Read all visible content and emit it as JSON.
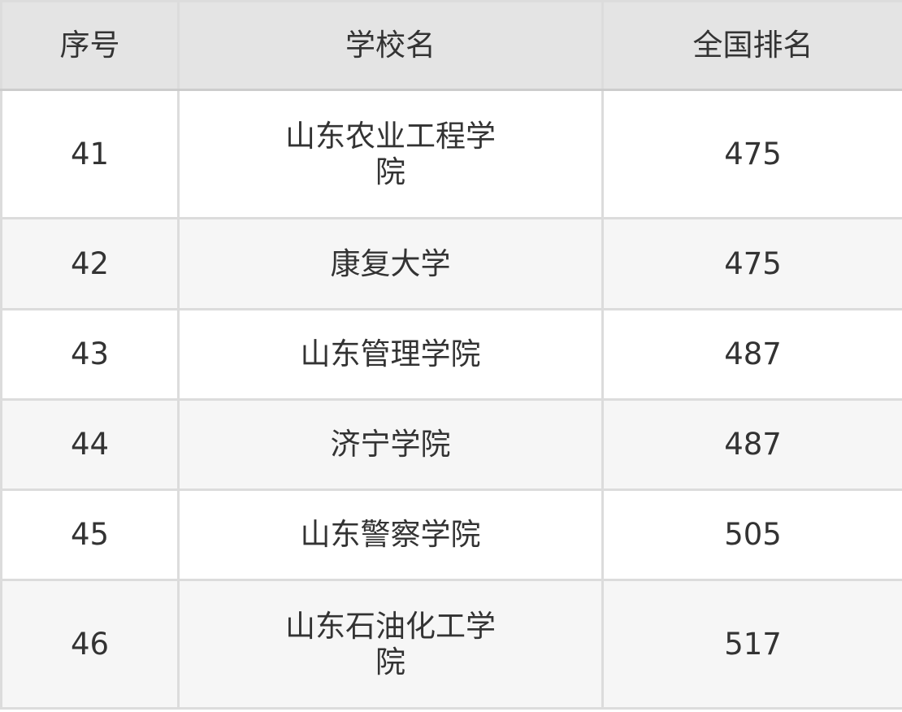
{
  "table": {
    "headers": [
      "序号",
      "学校名",
      "全国排名"
    ],
    "rows": [
      {
        "index": "41",
        "name": "山东农业工程学院",
        "rank": "475"
      },
      {
        "index": "42",
        "name": "康复大学",
        "rank": "475"
      },
      {
        "index": "43",
        "name": "山东管理学院",
        "rank": "487"
      },
      {
        "index": "44",
        "name": "济宁学院",
        "rank": "487"
      },
      {
        "index": "45",
        "name": "山东警察学院",
        "rank": "505"
      },
      {
        "index": "46",
        "name": "山东石油化工学院",
        "rank": "517"
      }
    ]
  }
}
